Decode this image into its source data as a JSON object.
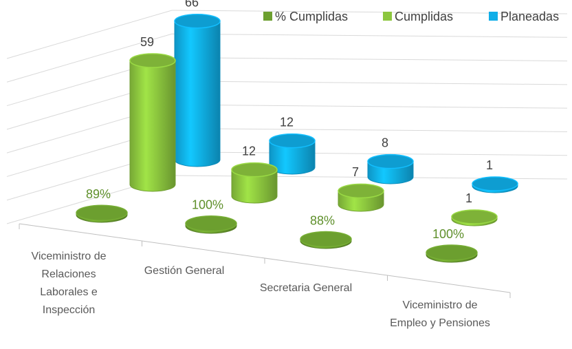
{
  "chart_data": {
    "type": "cylinder3d",
    "categories": [
      "Viceministro de Relaciones Laborales e Inspección",
      "Gestión General",
      "Secretaria General",
      "Viceministro de Empleo y Pensiones"
    ],
    "series": [
      {
        "name": "% Cumplidas",
        "color": "#6c9f2f",
        "values": [
          0.89,
          1,
          0.88,
          1
        ],
        "value_labels": [
          "89%",
          "100%",
          "88%",
          "100%"
        ]
      },
      {
        "name": "Cumplidas",
        "color": "#8cc63e",
        "values": [
          59,
          12,
          7,
          1
        ]
      },
      {
        "name": "Planeadas",
        "color": "#10aee8",
        "values": [
          66,
          12,
          8,
          1
        ]
      }
    ],
    "ylim": [
      0,
      70
    ],
    "yticks": [
      0,
      10,
      20,
      30,
      40,
      50,
      60,
      70
    ],
    "grid": true
  }
}
